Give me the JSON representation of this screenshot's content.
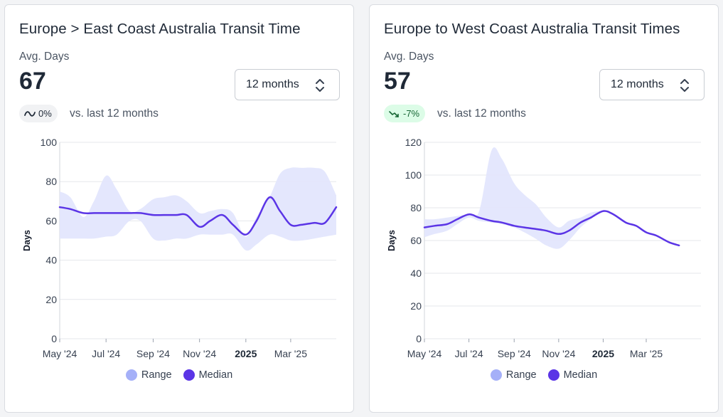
{
  "colors": {
    "range": "#a5b0f8",
    "range_fill": "#e3e6fd",
    "median": "#5b35e6",
    "grid": "#e5e7eb"
  },
  "cards": [
    {
      "title": "Europe > East Coast Australia Transit Time",
      "avg_label": "Avg. Days",
      "avg_value": "67",
      "select_value": "12 months",
      "change_icon": "wave-icon",
      "change_text": "0%",
      "change_type": "flat",
      "vs_text": "vs. last 12 months",
      "legend": {
        "range": "Range",
        "median": "Median"
      },
      "chart_data": {
        "type": "area",
        "ylabel": "Days",
        "ylim": [
          0,
          100
        ],
        "yticks": [
          0,
          20,
          40,
          60,
          80,
          100
        ],
        "x_ticks": [
          "May '24",
          "Jul '24",
          "Sep '24",
          "Nov '24",
          "2025",
          "Mar '25"
        ],
        "x_ticks_bold": [
          "2025"
        ],
        "x_start": "2024-05-01",
        "x_end": "2025-04-30",
        "tick_dates": [
          "2024-05-01",
          "2024-07-01",
          "2024-09-01",
          "2024-11-01",
          "2025-01-01",
          "2025-03-01"
        ],
        "x": [
          "2024-05-01",
          "2024-05-15",
          "2024-06-01",
          "2024-06-15",
          "2024-07-01",
          "2024-07-15",
          "2024-08-01",
          "2024-08-15",
          "2024-09-01",
          "2024-09-15",
          "2024-10-01",
          "2024-10-15",
          "2024-11-01",
          "2024-11-15",
          "2024-12-01",
          "2024-12-15",
          "2025-01-01",
          "2025-01-15",
          "2025-02-01",
          "2025-02-15",
          "2025-03-01",
          "2025-03-15",
          "2025-04-01",
          "2025-04-15",
          "2025-04-30"
        ],
        "series": [
          {
            "name": "Median",
            "values": [
              67,
              66,
              64,
              64,
              64,
              64,
              64,
              64,
              63,
              63,
              63,
              63,
              57,
              60,
              63,
              58,
              53,
              60,
              72,
              65,
              58,
              58,
              59,
              59,
              67
            ]
          },
          {
            "name": "Range",
            "upper": [
              75,
              72,
              62,
              70,
              83,
              76,
              65,
              66,
              71,
              72,
              73,
              70,
              64,
              65,
              66,
              64,
              52,
              62,
              72,
              84,
              87,
              87,
              87,
              85,
              73
            ],
            "lower": [
              51,
              51,
              51,
              51,
              52,
              53,
              60,
              60,
              51,
              50,
              51,
              51,
              53,
              53,
              53,
              53,
              45,
              48,
              53,
              52,
              50,
              50,
              51,
              52,
              53
            ]
          }
        ]
      }
    },
    {
      "title": "Europe to West Coast Australia Transit Times",
      "avg_label": "Avg. Days",
      "avg_value": "57",
      "select_value": "12 months",
      "change_icon": "trend-down-icon",
      "change_text": "-7%",
      "change_type": "down",
      "vs_text": "vs. last 12 months",
      "legend": {
        "range": "Range",
        "median": "Median"
      },
      "chart_data": {
        "type": "area",
        "ylabel": "Days",
        "ylim": [
          0,
          120
        ],
        "yticks": [
          0,
          20,
          40,
          60,
          80,
          100,
          120
        ],
        "x_ticks": [
          "May '24",
          "Jul '24",
          "Sep '24",
          "Nov '24",
          "2025",
          "Mar '25"
        ],
        "x_ticks_bold": [
          "2025"
        ],
        "x_start": "2024-05-01",
        "x_end": "2025-05-15",
        "tick_dates": [
          "2024-05-01",
          "2024-07-01",
          "2024-09-01",
          "2024-11-01",
          "2025-01-01",
          "2025-03-01"
        ],
        "x": [
          "2024-05-01",
          "2024-05-15",
          "2024-06-01",
          "2024-06-15",
          "2024-07-01",
          "2024-07-15",
          "2024-08-01",
          "2024-08-15",
          "2024-09-01",
          "2024-09-15",
          "2024-10-01",
          "2024-10-15",
          "2024-11-01",
          "2024-11-15",
          "2024-12-01",
          "2024-12-15",
          "2025-01-01",
          "2025-01-15",
          "2025-02-01",
          "2025-02-15",
          "2025-03-01",
          "2025-03-15",
          "2025-04-01",
          "2025-04-15"
        ],
        "series": [
          {
            "name": "Median",
            "values": [
              68,
              69,
              70,
              73,
              76,
              74,
              72,
              71,
              69,
              68,
              67,
              66,
              64,
              66,
              71,
              74,
              78,
              76,
              71,
              69,
              65,
              63,
              59,
              57
            ]
          },
          {
            "name": "Range",
            "upper": [
              73,
              73,
              74,
              75,
              76,
              78,
              115,
              110,
              95,
              88,
              82,
              74,
              68,
              72,
              74,
              77,
              78,
              76,
              71,
              69,
              65,
              63,
              59,
              57
            ],
            "lower": [
              62,
              64,
              66,
              70,
              74,
              72,
              71,
              70,
              68,
              65,
              61,
              57,
              55,
              60,
              68,
              73,
              78,
              76,
              71,
              69,
              65,
              63,
              59,
              57
            ]
          }
        ]
      }
    }
  ]
}
